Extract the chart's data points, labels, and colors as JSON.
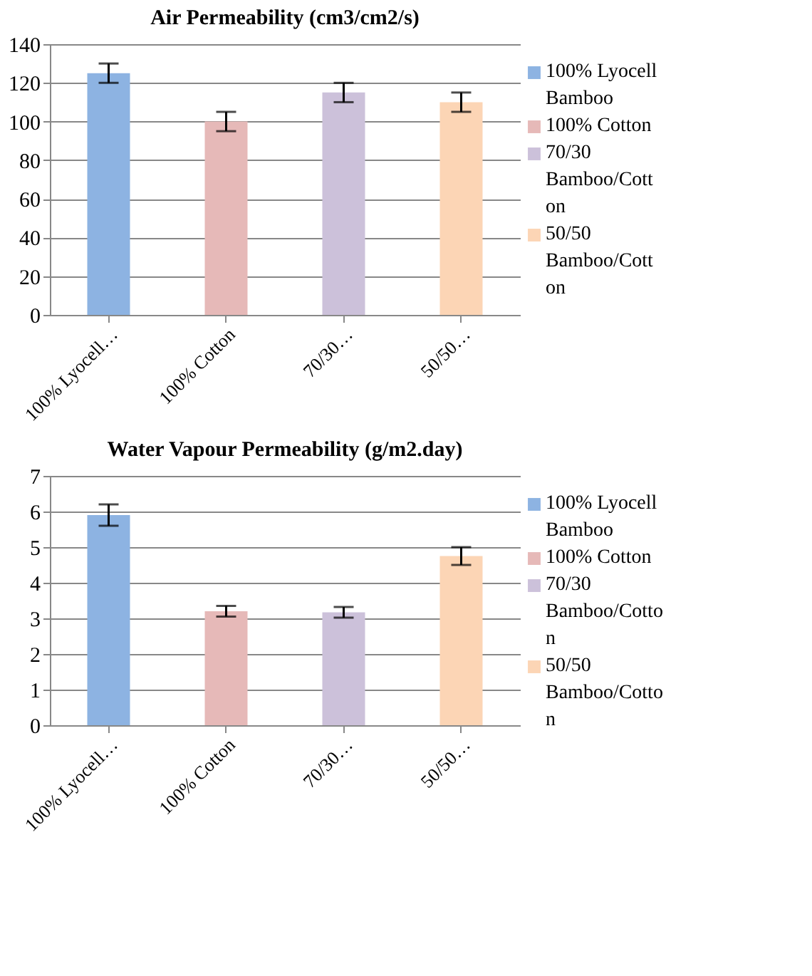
{
  "chart_data": [
    {
      "type": "bar",
      "title": "Air Permeability (cm3/cm2/s)",
      "categories": [
        "100% Lyocell…",
        "100% Cotton",
        "70/30…",
        "50/50…"
      ],
      "ylim": [
        0,
        140
      ],
      "yticks": [
        0,
        20,
        40,
        60,
        80,
        100,
        120,
        140
      ],
      "grid": "y",
      "legend": "right",
      "series": [
        {
          "name": "100% Lyocell Bamboo",
          "color": "#8db3e2",
          "values": [
            125,
            null,
            null,
            null
          ],
          "errors": [
            5,
            null,
            null,
            null
          ]
        },
        {
          "name": "100% Cotton",
          "color": "#e6b9b8",
          "values": [
            null,
            100,
            null,
            null
          ],
          "errors": [
            null,
            5,
            null,
            null
          ]
        },
        {
          "name": "70/30 Bamboo/Cotton",
          "color": "#ccc1da",
          "values": [
            null,
            null,
            115,
            null
          ],
          "errors": [
            null,
            null,
            5,
            null
          ]
        },
        {
          "name": "50/50 Bamboo/Cotton",
          "color": "#fcd5b5",
          "values": [
            null,
            null,
            null,
            110
          ],
          "errors": [
            null,
            null,
            null,
            5
          ]
        }
      ]
    },
    {
      "type": "bar",
      "title": "Water Vapour Permeability (g/m2.day)",
      "categories": [
        "100% Lyocell…",
        "100% Cotton",
        "70/30…",
        "50/50…"
      ],
      "ylim": [
        0,
        7
      ],
      "yticks": [
        0,
        1,
        2,
        3,
        4,
        5,
        6,
        7
      ],
      "grid": "y",
      "legend": "right",
      "series": [
        {
          "name": "100% Lyocell Bamboo",
          "color": "#8db3e2",
          "values": [
            5.9,
            null,
            null,
            null
          ],
          "errors": [
            0.3,
            null,
            null,
            null
          ]
        },
        {
          "name": "100% Cotton",
          "color": "#e6b9b8",
          "values": [
            null,
            3.2,
            null,
            null
          ],
          "errors": [
            null,
            0.15,
            null,
            null
          ]
        },
        {
          "name": "70/30 Bamboo/Cotton",
          "color": "#ccc1da",
          "values": [
            null,
            null,
            3.17,
            null
          ],
          "errors": [
            null,
            null,
            0.15,
            null
          ]
        },
        {
          "name": "50/50 Bamboo/Cotton",
          "color": "#fcd5b5",
          "values": [
            null,
            null,
            null,
            4.75
          ],
          "errors": [
            null,
            null,
            null,
            0.25
          ]
        }
      ]
    }
  ]
}
